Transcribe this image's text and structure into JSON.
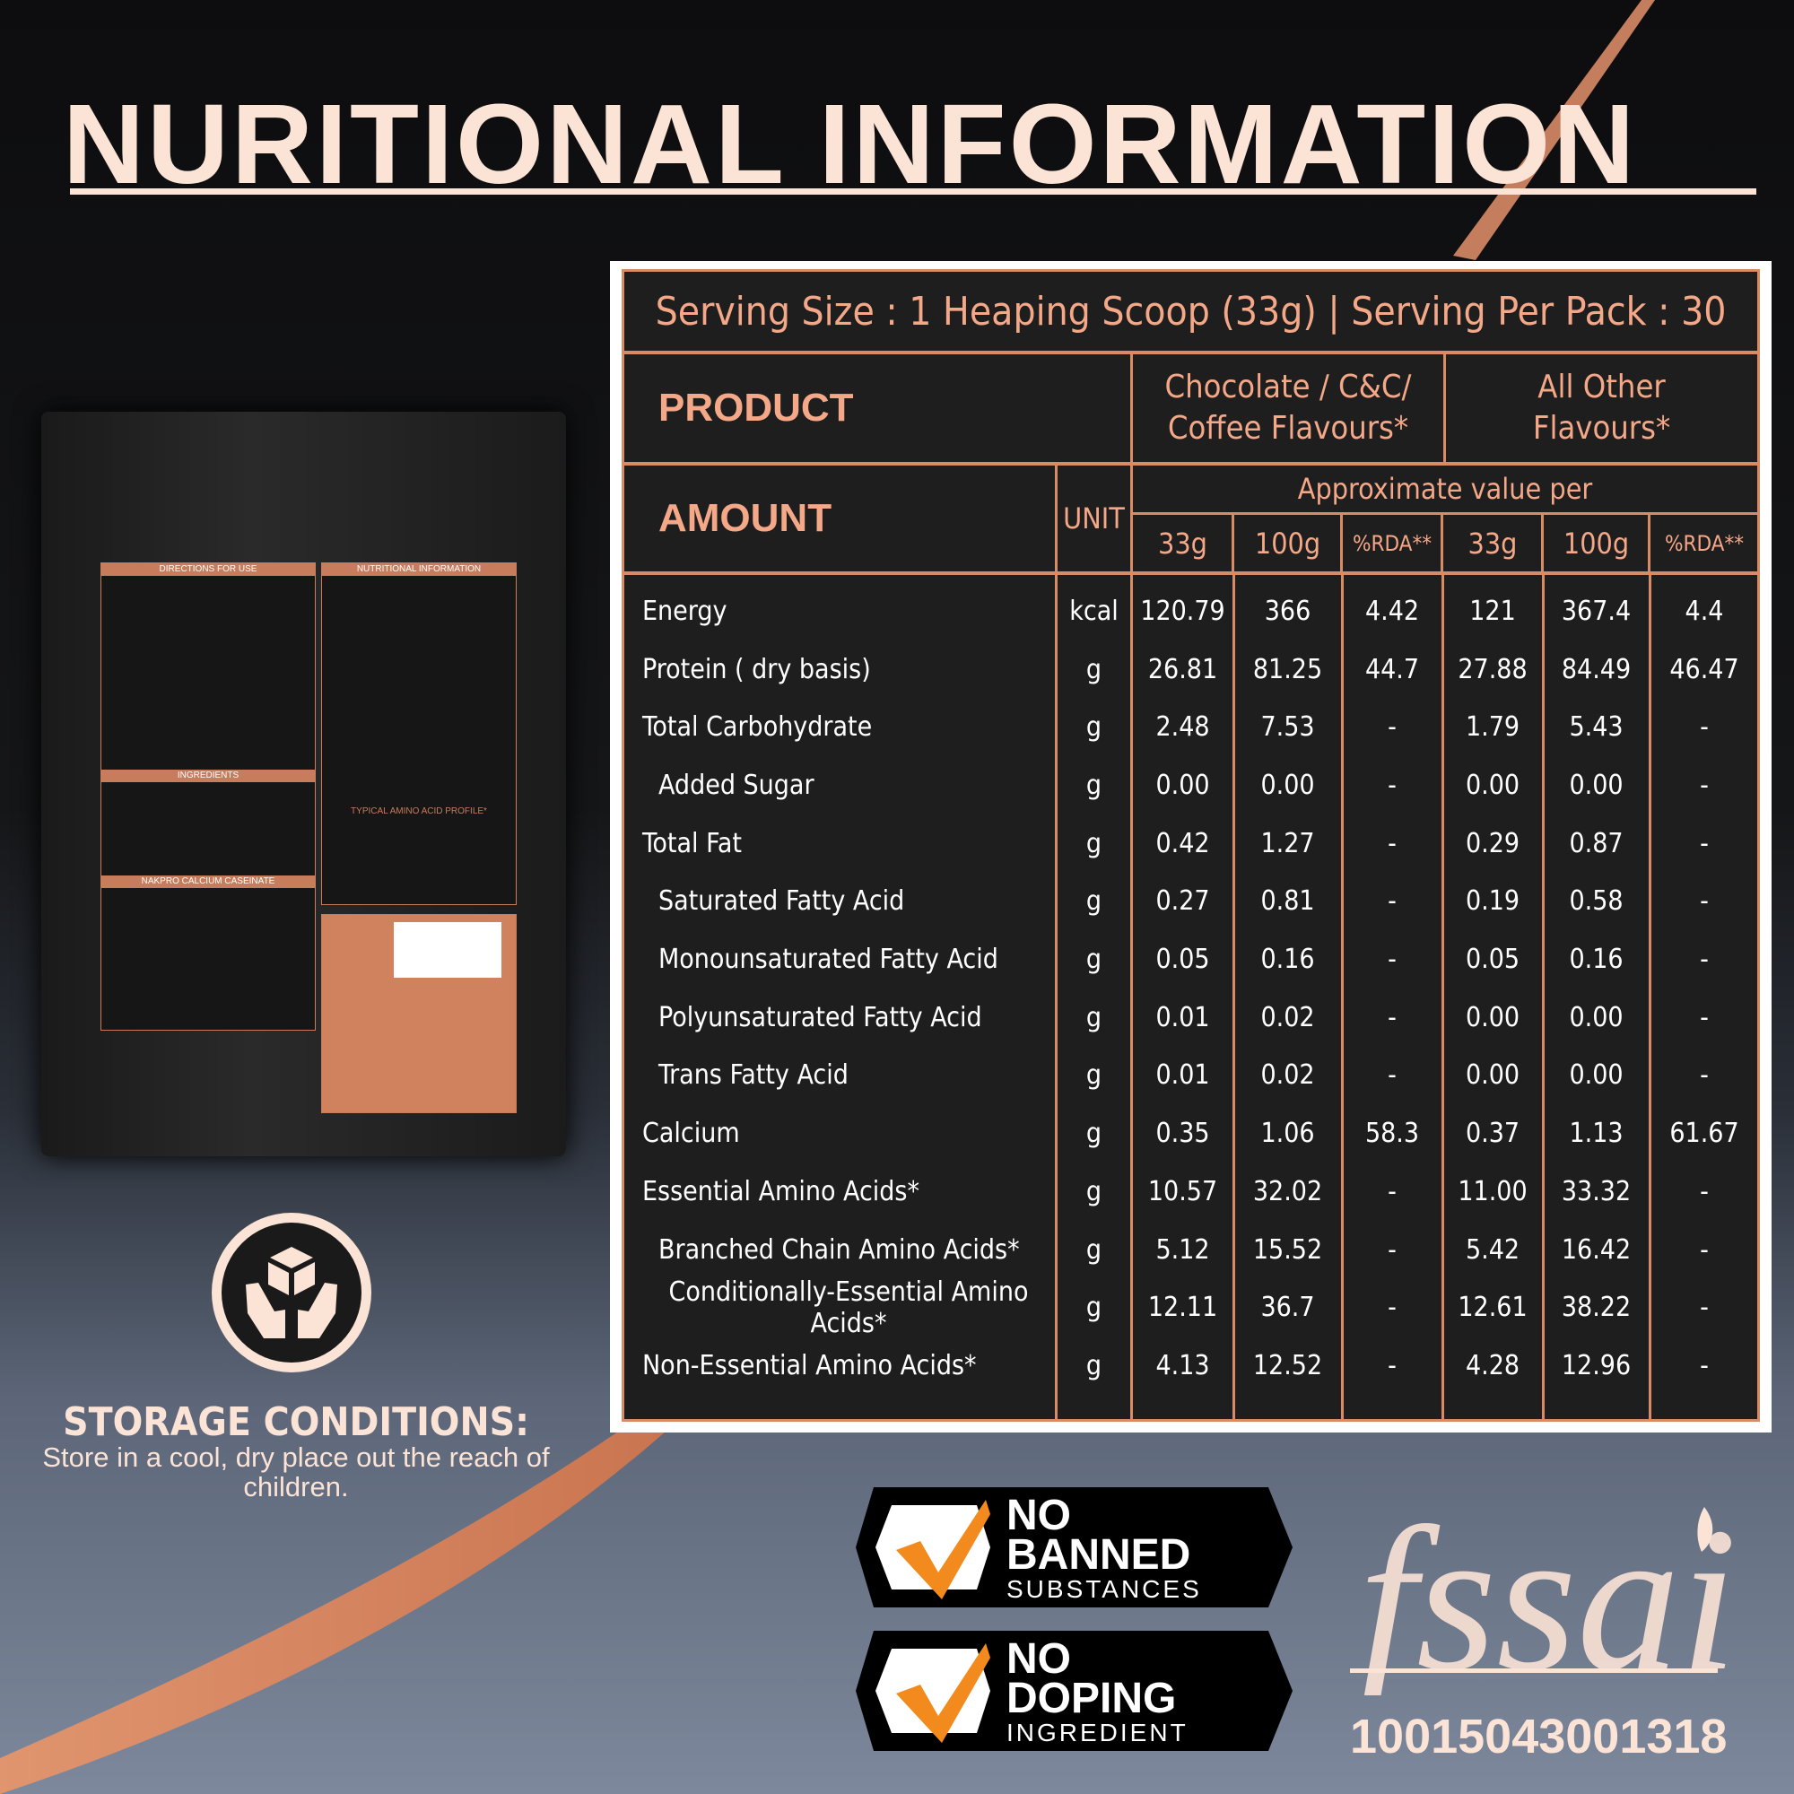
{
  "title": "NURITIONAL INFORMATION",
  "colors": {
    "accent": "#d98b66",
    "text_light": "#fbe3d6",
    "table_bg": "#1e1e1e",
    "check": "#f28a1e"
  },
  "table": {
    "serving": "Serving Size : 1 Heaping Scoop (33g) | Serving Per Pack : 30",
    "product_label": "PRODUCT",
    "flavour_1": "Chocolate / C&C/ Coffee Flavours*",
    "flavour_2": "All Other Flavours*",
    "amount_label": "AMOUNT",
    "unit_label": "UNIT",
    "approx_label": "Approximate value per",
    "sub_headers": [
      "33g",
      "100g",
      "%RDA**",
      "33g",
      "100g",
      "%RDA**"
    ],
    "rows": [
      {
        "name": "Energy",
        "indent": 0,
        "unit": "kcal",
        "values": [
          "120.79",
          "366",
          "4.42",
          "121",
          "367.4",
          "4.4"
        ]
      },
      {
        "name": "Protein ( dry basis)",
        "indent": 0,
        "unit": "g",
        "values": [
          "26.81",
          "81.25",
          "44.7",
          "27.88",
          "84.49",
          "46.47"
        ]
      },
      {
        "name": "Total Carbohydrate",
        "indent": 0,
        "unit": "g",
        "values": [
          "2.48",
          "7.53",
          "-",
          "1.79",
          "5.43",
          "-"
        ]
      },
      {
        "name": "Added Sugar",
        "indent": 1,
        "unit": "g",
        "values": [
          "0.00",
          "0.00",
          "-",
          "0.00",
          "0.00",
          "-"
        ]
      },
      {
        "name": "Total Fat",
        "indent": 0,
        "unit": "g",
        "values": [
          "0.42",
          "1.27",
          "-",
          "0.29",
          "0.87",
          "-"
        ]
      },
      {
        "name": "Saturated Fatty Acid",
        "indent": 1,
        "unit": "g",
        "values": [
          "0.27",
          "0.81",
          "-",
          "0.19",
          "0.58",
          "-"
        ]
      },
      {
        "name": "Monounsaturated Fatty Acid",
        "indent": 1,
        "unit": "g",
        "values": [
          "0.05",
          "0.16",
          "-",
          "0.05",
          "0.16",
          "-"
        ]
      },
      {
        "name": "Polyunsaturated Fatty Acid",
        "indent": 1,
        "unit": "g",
        "values": [
          "0.01",
          "0.02",
          "-",
          "0.00",
          "0.00",
          "-"
        ]
      },
      {
        "name": "Trans Fatty Acid",
        "indent": 1,
        "unit": "g",
        "values": [
          "0.01",
          "0.02",
          "-",
          "0.00",
          "0.00",
          "-"
        ]
      },
      {
        "name": "Calcium",
        "indent": 0,
        "unit": "g",
        "values": [
          "0.35",
          "1.06",
          "58.3",
          "0.37",
          "1.13",
          "61.67"
        ]
      },
      {
        "name": "Essential Amino Acids*",
        "indent": 0,
        "unit": "g",
        "values": [
          "10.57",
          "32.02",
          "-",
          "11.00",
          "33.32",
          "-"
        ]
      },
      {
        "name": "Branched Chain Amino Acids*",
        "indent": 1,
        "unit": "g",
        "values": [
          "5.12",
          "15.52",
          "-",
          "5.42",
          "16.42",
          "-"
        ]
      },
      {
        "name": "Conditionally-Essential Amino Acids*",
        "indent": 0,
        "unit": "g",
        "values": [
          "12.11",
          "36.7",
          "-",
          "12.61",
          "38.22",
          "-"
        ]
      },
      {
        "name": "Non-Essential Amino Acids*",
        "indent": 0,
        "unit": "g",
        "values": [
          "4.13",
          "12.52",
          "-",
          "4.28",
          "12.96",
          "-"
        ]
      }
    ]
  },
  "pack": {
    "headings": [
      "DIRECTIONS FOR USE",
      "NUTRITIONAL INFORMATION",
      "INGREDIENTS",
      "NAKPRO CALCIUM CASEINATE",
      "TYPICAL AMINO ACID PROFILE*"
    ]
  },
  "storage": {
    "title": "STORAGE CONDITIONS:",
    "text": "Store in a cool, dry place out the reach of children.",
    "icon": "hands-box-icon"
  },
  "badges": [
    {
      "line1": "NO",
      "line2": "BANNED",
      "line3": "SUBSTANCES",
      "icon": "check-icon"
    },
    {
      "line1": "NO",
      "line2": "DOPING",
      "line3": "INGREDIENT",
      "icon": "check-icon"
    }
  ],
  "fssai": {
    "logo_text": "fssai",
    "license": "10015043001318"
  }
}
